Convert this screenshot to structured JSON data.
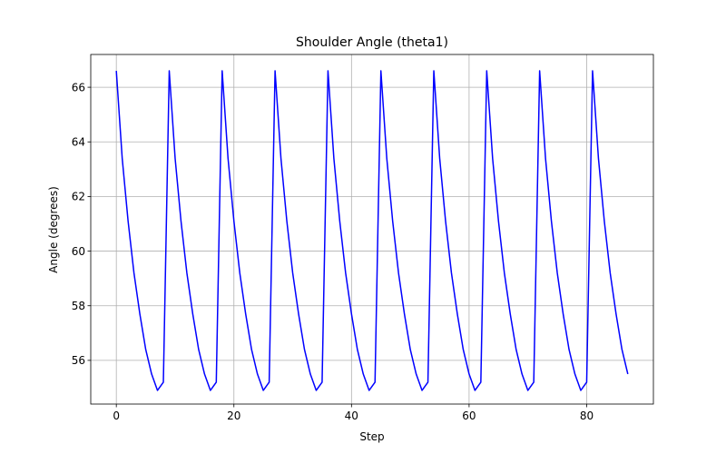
{
  "chart_data": {
    "type": "line",
    "title": "Shoulder Angle (theta1)",
    "xlabel": "Step",
    "ylabel": "Angle (degrees)",
    "xlim": [
      -4.35,
      91.35
    ],
    "ylim": [
      54.4,
      67.2
    ],
    "xticks": [
      0,
      20,
      40,
      60,
      80
    ],
    "yticks": [
      56,
      58,
      60,
      62,
      64,
      66
    ],
    "grid": true,
    "legend": "none",
    "series": [
      {
        "color": "#0000ff",
        "x": [
          0,
          1,
          2,
          3,
          4,
          5,
          6,
          7,
          8,
          9,
          10,
          11,
          12,
          13,
          14,
          15,
          16,
          17,
          18,
          19,
          20,
          21,
          22,
          23,
          24,
          25,
          26,
          27,
          28,
          29,
          30,
          31,
          32,
          33,
          34,
          35,
          36,
          37,
          38,
          39,
          40,
          41,
          42,
          43,
          44,
          45,
          46,
          47,
          48,
          49,
          50,
          51,
          52,
          53,
          54,
          55,
          56,
          57,
          58,
          59,
          60,
          61,
          62,
          63,
          64,
          65,
          66,
          67,
          68,
          69,
          70,
          71,
          72,
          73,
          74,
          75,
          76,
          77,
          78,
          79,
          80,
          81,
          82,
          83,
          84,
          85,
          86,
          87
        ],
        "values": [
          66.6,
          63.4,
          61.1,
          59.2,
          57.7,
          56.4,
          55.5,
          54.9,
          55.2,
          66.6,
          63.4,
          61.1,
          59.2,
          57.7,
          56.4,
          55.5,
          54.9,
          55.2,
          66.6,
          63.4,
          61.1,
          59.2,
          57.7,
          56.4,
          55.5,
          54.9,
          55.2,
          66.6,
          63.4,
          61.1,
          59.2,
          57.7,
          56.4,
          55.5,
          54.9,
          55.2,
          66.6,
          63.4,
          61.1,
          59.2,
          57.7,
          56.4,
          55.5,
          54.9,
          55.2,
          66.6,
          63.4,
          61.1,
          59.2,
          57.7,
          56.4,
          55.5,
          54.9,
          55.2,
          66.6,
          63.4,
          61.1,
          59.2,
          57.7,
          56.4,
          55.5,
          54.9,
          55.2,
          66.6,
          63.4,
          61.1,
          59.2,
          57.7,
          56.4,
          55.5,
          54.9,
          55.2,
          66.6,
          63.4,
          61.1,
          59.2,
          57.7,
          56.4,
          55.5,
          54.9,
          55.2,
          66.6,
          63.4,
          61.1,
          59.2,
          57.7,
          56.4,
          55.5
        ]
      }
    ]
  }
}
